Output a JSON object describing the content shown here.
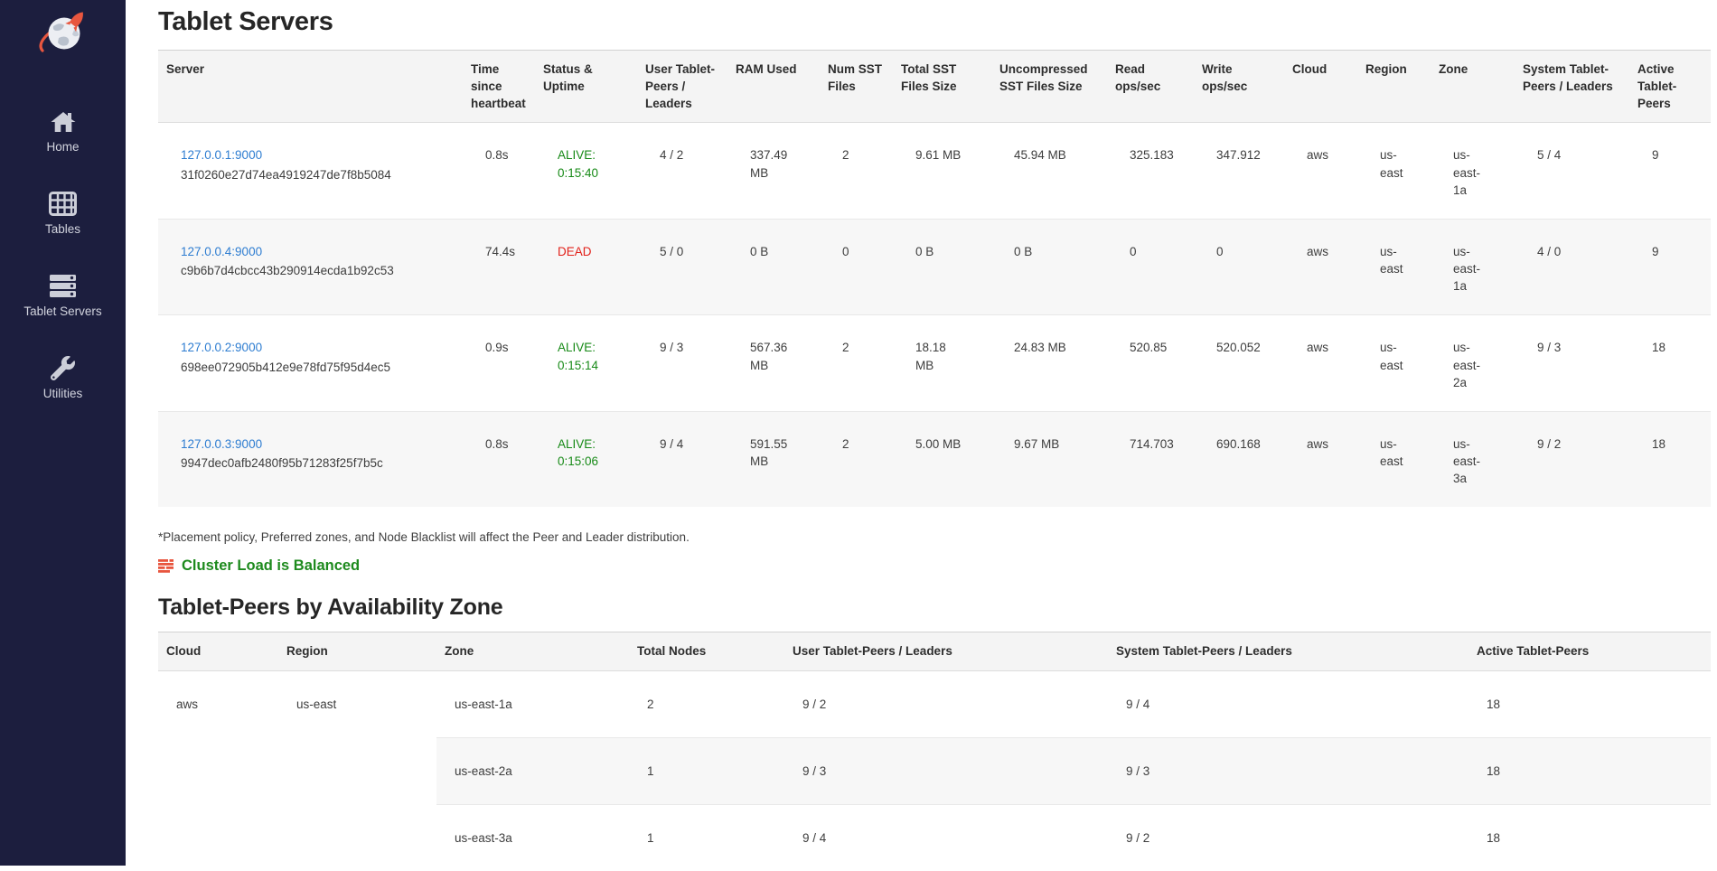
{
  "colors": {
    "sidebar_bg": "#1c1e3e",
    "accent_orange": "#e8563f",
    "link_blue": "#2e7dd1",
    "alive_green": "#178a17",
    "dead_red": "#e2211a",
    "balanced_green": "#1d8a1d",
    "stripe_gray": "#f7f7f7",
    "header_gray": "#f4f4f4"
  },
  "sidebar": {
    "logo": "yugabyte-logo",
    "items": [
      {
        "label": "Home",
        "icon": "home-icon"
      },
      {
        "label": "Tables",
        "icon": "tables-icon"
      },
      {
        "label": "Tablet Servers",
        "icon": "tablet-servers-icon"
      },
      {
        "label": "Utilities",
        "icon": "utilities-icon"
      }
    ]
  },
  "page": {
    "title": "Tablet Servers",
    "footnote": "*Placement policy, Preferred zones, and Node Blacklist will affect the Peer and Leader distribution.",
    "load_status": "Cluster Load is Balanced",
    "section2_title": "Tablet-Peers by Availability Zone"
  },
  "servers_table": {
    "headers": [
      "Server",
      "Time since heartbeat",
      "Status & Uptime",
      "User Tablet-Peers / Leaders",
      "RAM Used",
      "Num SST Files",
      "Total SST Files Size",
      "Uncompressed SST Files Size",
      "Read ops/sec",
      "Write ops/sec",
      "Cloud",
      "Region",
      "Zone",
      "System Tablet-Peers / Leaders",
      "Active Tablet-Peers"
    ],
    "rows": [
      {
        "server": "127.0.0.1:9000",
        "uuid": "31f0260e27d74ea4919247de7f8b5084",
        "heartbeat": "0.8s",
        "status": "ALIVE:",
        "uptime": "0:15:40",
        "alive": true,
        "user_peers": "4 / 2",
        "ram": "337.49 MB",
        "num_sst": "2",
        "total_sst": "9.61 MB",
        "uncompressed_sst": "45.94 MB",
        "read_ops": "325.183",
        "write_ops": "347.912",
        "cloud": "aws",
        "region": "us-east",
        "zone": "us-east-1a",
        "system_peers": "5 / 4",
        "active_peers": "9"
      },
      {
        "server": "127.0.0.4:9000",
        "uuid": "c9b6b7d4cbcc43b290914ecda1b92c53",
        "heartbeat": "74.4s",
        "status": "DEAD",
        "uptime": "",
        "alive": false,
        "user_peers": "5 / 0",
        "ram": "0 B",
        "num_sst": "0",
        "total_sst": "0 B",
        "uncompressed_sst": "0 B",
        "read_ops": "0",
        "write_ops": "0",
        "cloud": "aws",
        "region": "us-east",
        "zone": "us-east-1a",
        "system_peers": "4 / 0",
        "active_peers": "9"
      },
      {
        "server": "127.0.0.2:9000",
        "uuid": "698ee072905b412e9e78fd75f95d4ec5",
        "heartbeat": "0.9s",
        "status": "ALIVE:",
        "uptime": "0:15:14",
        "alive": true,
        "user_peers": "9 / 3",
        "ram": "567.36 MB",
        "num_sst": "2",
        "total_sst": "18.18 MB",
        "uncompressed_sst": "24.83 MB",
        "read_ops": "520.85",
        "write_ops": "520.052",
        "cloud": "aws",
        "region": "us-east",
        "zone": "us-east-2a",
        "system_peers": "9 / 3",
        "active_peers": "18"
      },
      {
        "server": "127.0.0.3:9000",
        "uuid": "9947dec0afb2480f95b71283f25f7b5c",
        "heartbeat": "0.8s",
        "status": "ALIVE:",
        "uptime": "0:15:06",
        "alive": true,
        "user_peers": "9 / 4",
        "ram": "591.55 MB",
        "num_sst": "2",
        "total_sst": "5.00 MB",
        "uncompressed_sst": "9.67 MB",
        "read_ops": "714.703",
        "write_ops": "690.168",
        "cloud": "aws",
        "region": "us-east",
        "zone": "us-east-3a",
        "system_peers": "9 / 2",
        "active_peers": "18"
      }
    ]
  },
  "zones_table": {
    "headers": [
      "Cloud",
      "Region",
      "Zone",
      "Total Nodes",
      "User Tablet-Peers / Leaders",
      "System Tablet-Peers / Leaders",
      "Active Tablet-Peers"
    ],
    "cloud": "aws",
    "region": "us-east",
    "rows": [
      {
        "zone": "us-east-1a",
        "total_nodes": "2",
        "user_peers": "9 / 2",
        "system_peers": "9 / 4",
        "active_peers": "18"
      },
      {
        "zone": "us-east-2a",
        "total_nodes": "1",
        "user_peers": "9 / 3",
        "system_peers": "9 / 3",
        "active_peers": "18"
      },
      {
        "zone": "us-east-3a",
        "total_nodes": "1",
        "user_peers": "9 / 4",
        "system_peers": "9 / 2",
        "active_peers": "18"
      }
    ]
  }
}
